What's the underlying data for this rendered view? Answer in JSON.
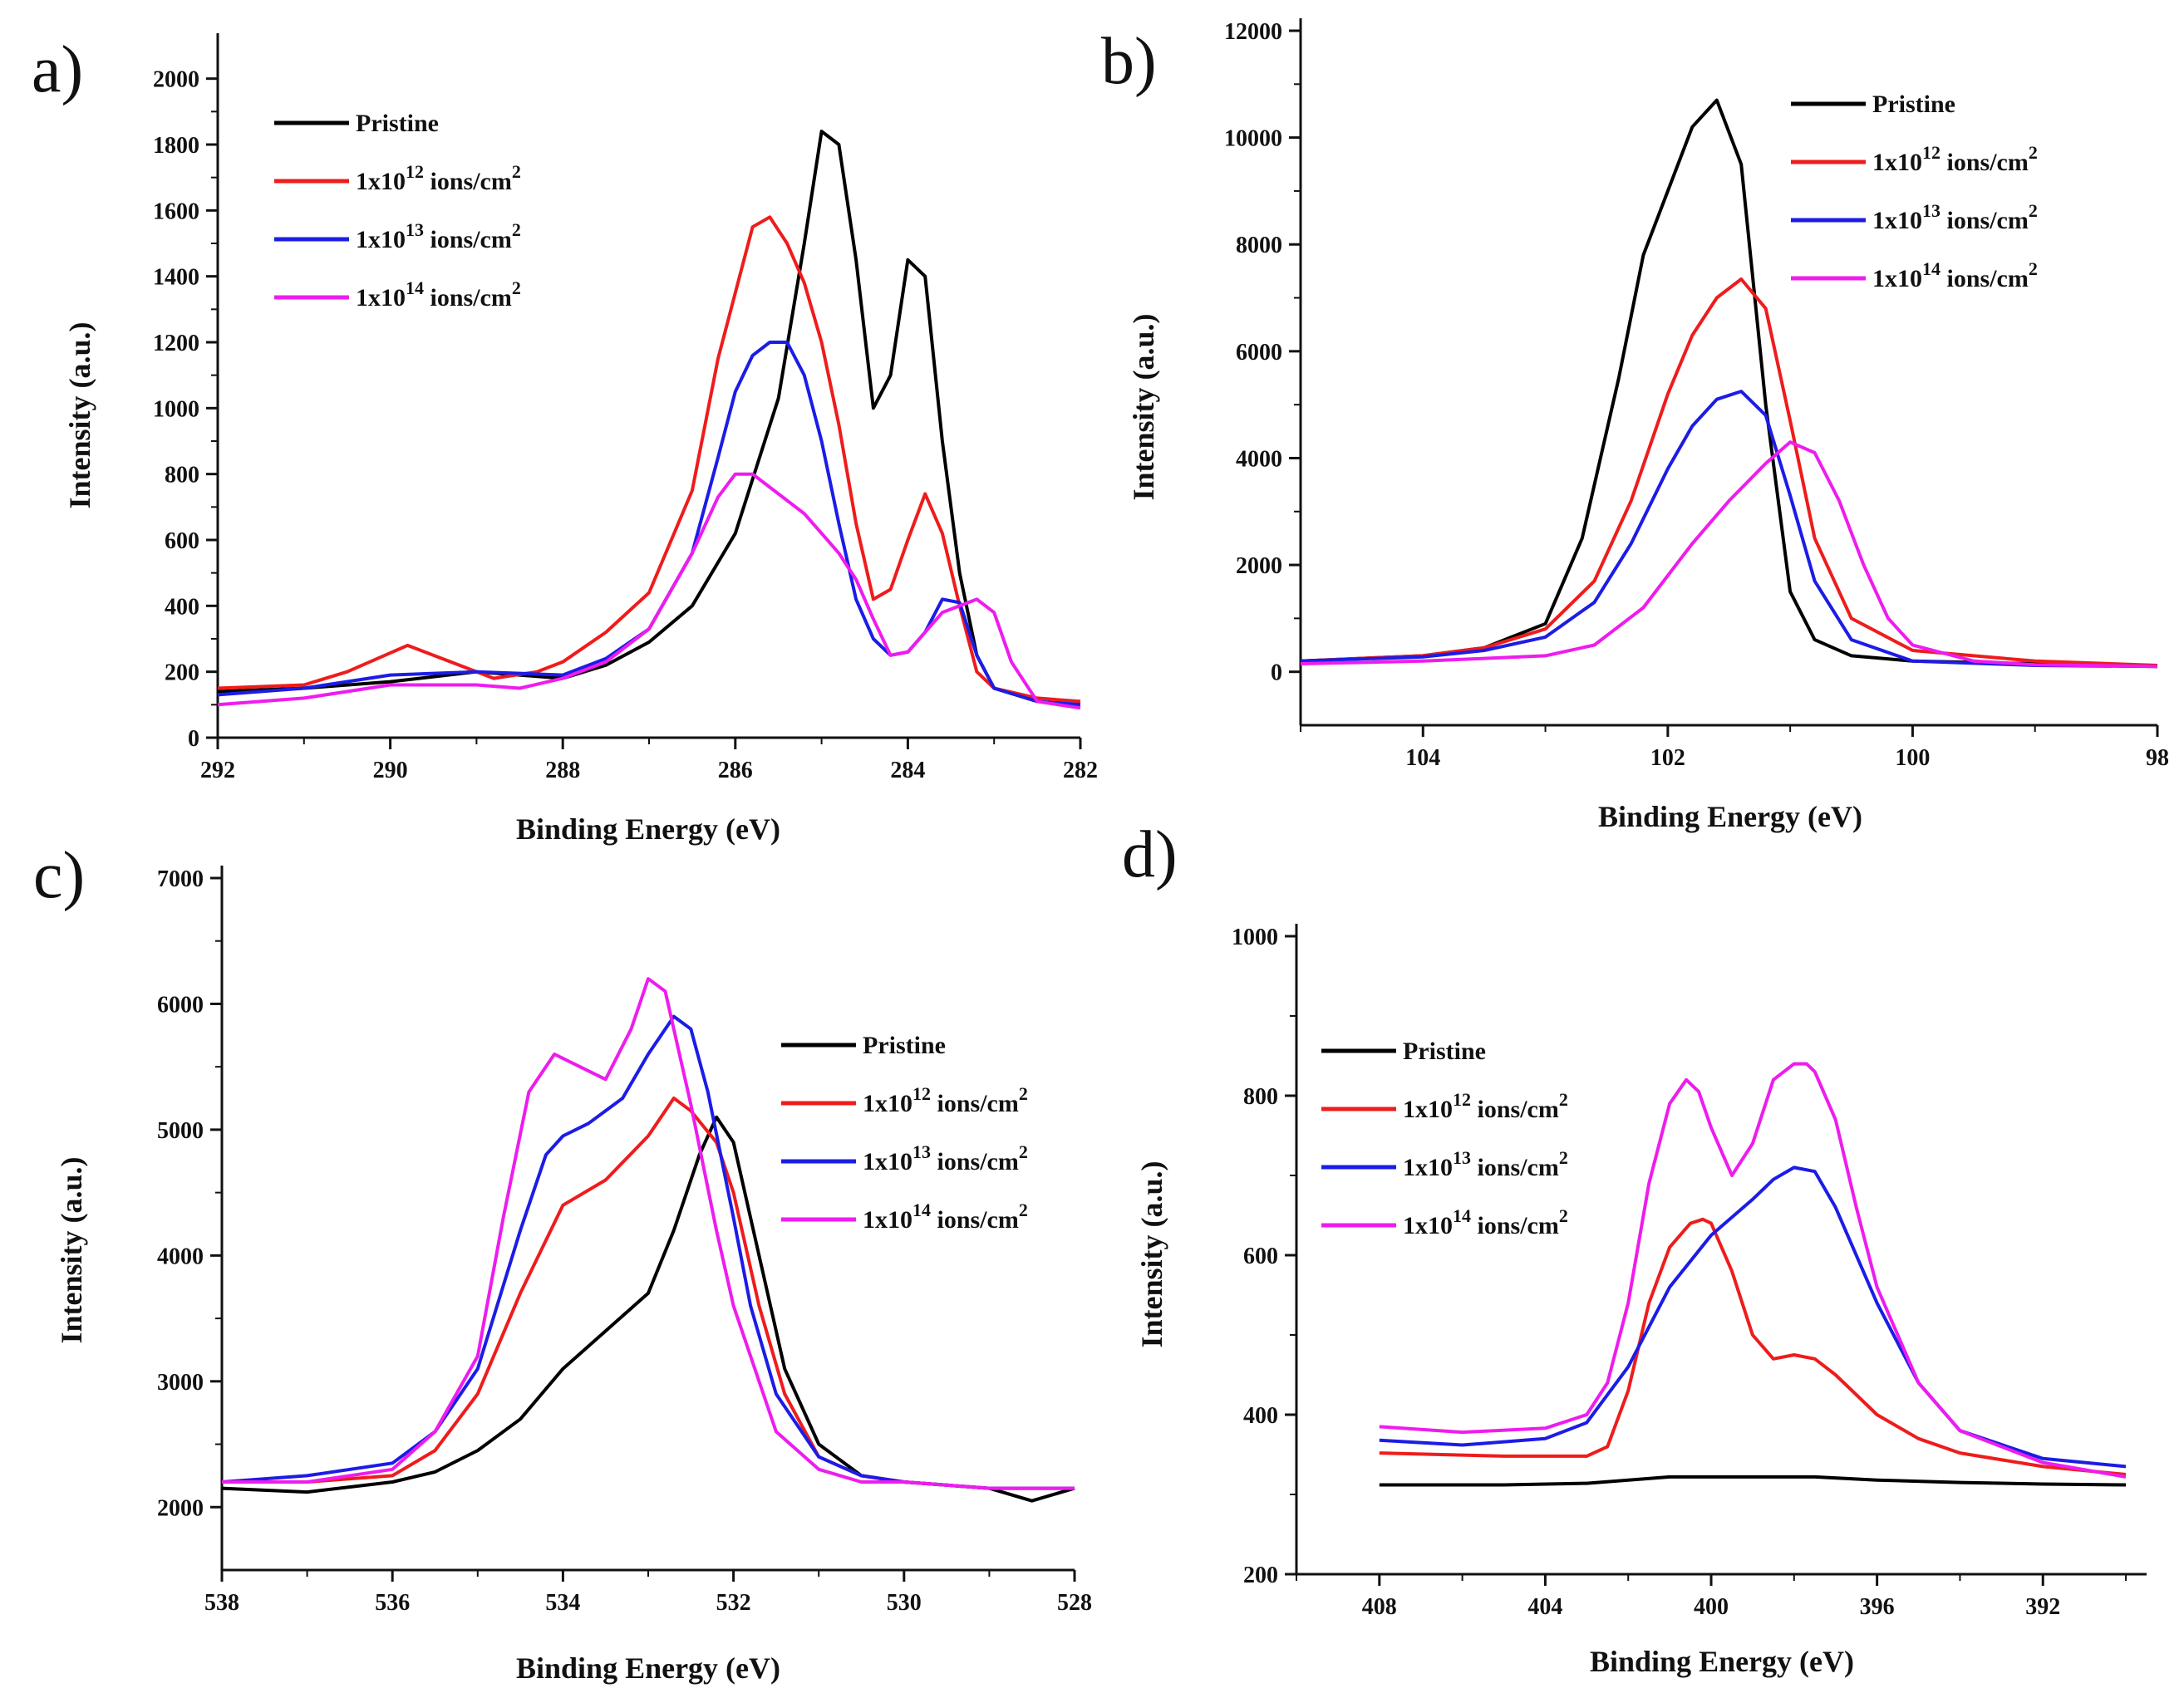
{
  "colors": {
    "Pristine": "#000000",
    "1x10^12 ions/cm^2": "#ee1c1c",
    "1x10^13 ions/cm^2": "#1c1ce6",
    "1x10^14 ions/cm^2": "#ee1cee"
  },
  "chart_data": [
    {
      "panel": "a)",
      "type": "line",
      "xlabel": "Binding Energy (eV)",
      "ylabel": "Intensity (a.u.)",
      "xlim": [
        292,
        282
      ],
      "ylim": [
        0,
        2100
      ],
      "xticks": [
        292,
        290,
        288,
        286,
        284,
        282
      ],
      "yticks": [
        0,
        200,
        400,
        600,
        800,
        1000,
        1200,
        1400,
        1600,
        1800,
        2000
      ],
      "legend_position": "top-left",
      "grid": false,
      "series": [
        {
          "name": "Pristine",
          "x": [
            292,
            291,
            290,
            289,
            288,
            287.5,
            287,
            286.5,
            286,
            285.5,
            285.2,
            285,
            284.8,
            284.6,
            284.4,
            284.2,
            284,
            283.8,
            283.6,
            283.4,
            283.2,
            283,
            282.5
          ],
          "y": [
            140,
            150,
            170,
            200,
            180,
            220,
            290,
            400,
            620,
            1030,
            1500,
            1840,
            1800,
            1450,
            1000,
            1100,
            1450,
            1400,
            900,
            500,
            250,
            150,
            110
          ]
        },
        {
          "name": "1x10^12 ions/cm^2",
          "x": [
            292,
            291,
            290.5,
            289.8,
            289.3,
            288.8,
            288.3,
            288,
            287.5,
            287,
            286.5,
            286.2,
            285.8,
            285.6,
            285.4,
            285.2,
            285,
            284.8,
            284.6,
            284.4,
            284.2,
            284,
            283.8,
            283.6,
            283.4,
            283.2,
            283,
            282.5,
            282
          ],
          "y": [
            150,
            160,
            200,
            280,
            230,
            180,
            200,
            230,
            320,
            440,
            750,
            1150,
            1550,
            1580,
            1500,
            1380,
            1200,
            950,
            650,
            420,
            450,
            600,
            740,
            620,
            400,
            200,
            150,
            120,
            110
          ]
        },
        {
          "name": "1x10^13 ions/cm^2",
          "x": [
            292,
            291,
            290,
            289,
            288,
            287.5,
            287,
            286.5,
            286.2,
            286,
            285.8,
            285.6,
            285.4,
            285.2,
            285,
            284.8,
            284.6,
            284.4,
            284.2,
            284,
            283.8,
            283.6,
            283.4,
            283.2,
            283,
            282.5,
            282
          ],
          "y": [
            130,
            150,
            190,
            200,
            190,
            240,
            330,
            560,
            850,
            1050,
            1160,
            1200,
            1200,
            1100,
            900,
            650,
            420,
            300,
            250,
            260,
            320,
            420,
            410,
            250,
            150,
            110,
            100
          ]
        },
        {
          "name": "1x10^14 ions/cm^2",
          "x": [
            292,
            291,
            290,
            289,
            288.5,
            288,
            287.5,
            287,
            286.5,
            286.2,
            286,
            285.8,
            285.5,
            285.2,
            285,
            284.8,
            284.6,
            284.4,
            284.2,
            284,
            283.8,
            283.6,
            283.4,
            283.2,
            283,
            282.8,
            282.5,
            282
          ],
          "y": [
            100,
            120,
            160,
            160,
            150,
            180,
            230,
            330,
            560,
            730,
            800,
            800,
            740,
            680,
            620,
            560,
            480,
            360,
            250,
            260,
            320,
            380,
            400,
            420,
            380,
            230,
            110,
            90
          ]
        }
      ]
    },
    {
      "panel": "b)",
      "type": "line",
      "xlabel": "Binding Energy (eV)",
      "ylabel": "Intensity (a.u.)",
      "xlim": [
        105,
        98
      ],
      "ylim": [
        -1000,
        12000
      ],
      "xticks": [
        104,
        102,
        100,
        98
      ],
      "yticks": [
        0,
        2000,
        4000,
        6000,
        8000,
        10000,
        12000
      ],
      "legend_position": "top-right",
      "grid": false,
      "series": [
        {
          "name": "Pristine",
          "x": [
            105,
            104,
            103.5,
            103,
            102.7,
            102.4,
            102.2,
            102,
            101.8,
            101.6,
            101.4,
            101.2,
            101,
            100.8,
            100.5,
            100,
            99,
            98
          ],
          "y": [
            200,
            300,
            450,
            900,
            2500,
            5500,
            7800,
            9000,
            10200,
            10700,
            9500,
            5000,
            1500,
            600,
            300,
            200,
            150,
            100
          ]
        },
        {
          "name": "1x10^12 ions/cm^2",
          "x": [
            105,
            104,
            103.5,
            103,
            102.6,
            102.3,
            102,
            101.8,
            101.6,
            101.4,
            101.2,
            101,
            100.8,
            100.5,
            100,
            99,
            98
          ],
          "y": [
            200,
            300,
            450,
            800,
            1700,
            3200,
            5200,
            6300,
            7000,
            7350,
            6800,
            4700,
            2500,
            1000,
            400,
            200,
            120
          ]
        },
        {
          "name": "1x10^13 ions/cm^2",
          "x": [
            105,
            104,
            103.5,
            103,
            102.6,
            102.3,
            102,
            101.8,
            101.6,
            101.4,
            101.2,
            101,
            100.8,
            100.5,
            100,
            99,
            98
          ],
          "y": [
            200,
            280,
            400,
            650,
            1300,
            2400,
            3800,
            4600,
            5100,
            5250,
            4800,
            3300,
            1700,
            600,
            200,
            120,
            100
          ]
        },
        {
          "name": "1x10^14 ions/cm^2",
          "x": [
            105,
            104,
            103.5,
            103,
            102.6,
            102.2,
            101.8,
            101.5,
            101.2,
            101,
            100.8,
            100.6,
            100.4,
            100.2,
            100,
            99.5,
            99,
            98
          ],
          "y": [
            150,
            200,
            250,
            300,
            500,
            1200,
            2400,
            3200,
            3900,
            4300,
            4100,
            3200,
            2000,
            1000,
            500,
            200,
            130,
            100
          ]
        }
      ]
    },
    {
      "panel": "c)",
      "type": "line",
      "xlabel": "Binding Energy (eV)",
      "ylabel": "Intensity (a.u.)",
      "xlim": [
        538,
        528
      ],
      "ylim": [
        1500,
        7000
      ],
      "xticks": [
        538,
        536,
        534,
        532,
        530,
        528
      ],
      "yticks": [
        2000,
        3000,
        4000,
        5000,
        6000,
        7000
      ],
      "legend_position": "right",
      "grid": false,
      "series": [
        {
          "name": "Pristine",
          "x": [
            538,
            537,
            536,
            535.5,
            535,
            534.5,
            534,
            533.5,
            533,
            532.7,
            532.4,
            532.2,
            532,
            531.7,
            531.4,
            531,
            530.5,
            530,
            529,
            528.5,
            528
          ],
          "y": [
            2150,
            2120,
            2200,
            2280,
            2450,
            2700,
            3100,
            3400,
            3700,
            4200,
            4800,
            5100,
            4900,
            4000,
            3100,
            2500,
            2250,
            2200,
            2150,
            2050,
            2150
          ]
        },
        {
          "name": "1x10^12 ions/cm^2",
          "x": [
            538,
            537,
            536,
            535.5,
            535,
            534.5,
            534,
            533.5,
            533,
            532.7,
            532.5,
            532.2,
            532,
            531.7,
            531.4,
            531,
            530.5,
            530,
            529,
            528
          ],
          "y": [
            2200,
            2200,
            2250,
            2450,
            2900,
            3700,
            4400,
            4600,
            4950,
            5250,
            5150,
            4900,
            4500,
            3600,
            2900,
            2400,
            2250,
            2200,
            2150,
            2150
          ]
        },
        {
          "name": "1x10^13 ions/cm^2",
          "x": [
            538,
            537,
            536,
            535.5,
            535,
            534.5,
            534.2,
            534,
            533.7,
            533.3,
            533,
            532.7,
            532.5,
            532.3,
            532,
            531.8,
            531.5,
            531,
            530.5,
            530,
            529,
            528
          ],
          "y": [
            2200,
            2250,
            2350,
            2600,
            3100,
            4200,
            4800,
            4950,
            5050,
            5250,
            5600,
            5900,
            5800,
            5300,
            4300,
            3600,
            2900,
            2400,
            2250,
            2200,
            2150,
            2150
          ]
        },
        {
          "name": "1x10^14 ions/cm^2",
          "x": [
            538,
            537,
            536,
            535.5,
            535,
            534.7,
            534.4,
            534.1,
            533.8,
            533.5,
            533.2,
            533,
            532.8,
            532.5,
            532.2,
            532,
            531.7,
            531.5,
            531,
            530.5,
            530,
            529,
            528
          ],
          "y": [
            2200,
            2200,
            2300,
            2600,
            3200,
            4300,
            5300,
            5600,
            5500,
            5400,
            5800,
            6200,
            6100,
            5200,
            4200,
            3600,
            3000,
            2600,
            2300,
            2200,
            2200,
            2150,
            2150
          ]
        }
      ]
    },
    {
      "panel": "d)",
      "type": "line",
      "xlabel": "Binding Energy (eV)",
      "ylabel": "Intensity (a.u.)",
      "xlim": [
        410,
        389.5
      ],
      "ylim": [
        200,
        1000
      ],
      "xticks": [
        408,
        404,
        400,
        396,
        392
      ],
      "yticks": [
        200,
        400,
        600,
        800,
        1000
      ],
      "legend_position": "top-left",
      "grid": false,
      "series": [
        {
          "name": "Pristine",
          "x": [
            408,
            405,
            403,
            401,
            399,
            397.5,
            396,
            394,
            392,
            390
          ],
          "y": [
            312,
            312,
            314,
            322,
            322,
            322,
            318,
            315,
            313,
            312
          ]
        },
        {
          "name": "1x10^12 ions/cm^2",
          "x": [
            408,
            405,
            403,
            402.5,
            402,
            401.5,
            401,
            400.5,
            400.2,
            400,
            399.5,
            399,
            398.5,
            398,
            397.5,
            397,
            396.5,
            396,
            395,
            394,
            392,
            390
          ],
          "y": [
            352,
            348,
            348,
            360,
            430,
            540,
            610,
            640,
            645,
            640,
            580,
            500,
            470,
            475,
            470,
            450,
            425,
            400,
            370,
            352,
            335,
            325
          ]
        },
        {
          "name": "1x10^13 ions/cm^2",
          "x": [
            408,
            406,
            404,
            403,
            402,
            401,
            400,
            399,
            398.5,
            398,
            397.5,
            397,
            396,
            395,
            394,
            392,
            390
          ],
          "y": [
            368,
            362,
            370,
            390,
            460,
            560,
            625,
            670,
            695,
            710,
            705,
            660,
            540,
            440,
            380,
            345,
            335
          ]
        },
        {
          "name": "1x10^14 ions/cm^2",
          "x": [
            408,
            406,
            404,
            403,
            402.5,
            402,
            401.5,
            401,
            400.6,
            400.3,
            400,
            399.5,
            399,
            398.5,
            398,
            397.7,
            397.5,
            397,
            396.5,
            396,
            395,
            394,
            392,
            390
          ],
          "y": [
            385,
            378,
            383,
            400,
            440,
            540,
            690,
            790,
            820,
            805,
            760,
            700,
            740,
            820,
            840,
            840,
            830,
            770,
            660,
            560,
            440,
            380,
            340,
            322
          ]
        }
      ]
    }
  ]
}
